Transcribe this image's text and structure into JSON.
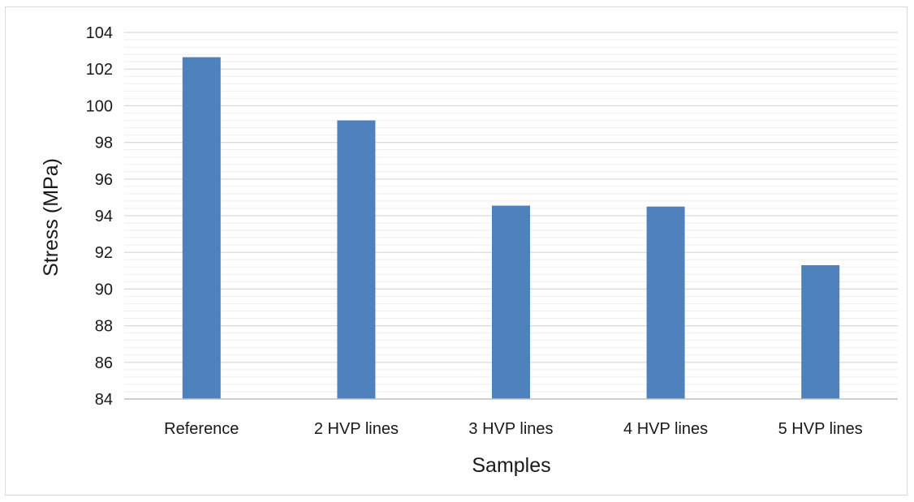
{
  "chart_data": {
    "type": "bar",
    "title": "",
    "xlabel": "Samples",
    "ylabel": "Stress (MPa)",
    "categories": [
      "Reference",
      "2 HVP lines",
      "3 HVP lines",
      "4 HVP lines",
      "5 HVP lines"
    ],
    "values": [
      102.65,
      99.2,
      94.55,
      94.5,
      91.3
    ],
    "ylim": [
      84,
      104
    ],
    "yticks": [
      84,
      86,
      88,
      90,
      92,
      94,
      96,
      98,
      100,
      102,
      104
    ],
    "minor_grid_step": 0.4,
    "grid": true,
    "legend": "none",
    "colors": {
      "bar": "#4f81bd",
      "major_grid": "#d9d9d9",
      "minor_grid": "#eeeeee",
      "axis": "#bfbfbf"
    }
  }
}
